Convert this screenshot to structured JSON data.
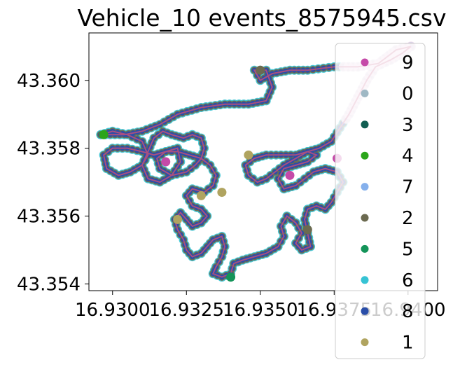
{
  "chart_data": {
    "type": "scatter",
    "title": "Vehicle_10 events_8575945.csv",
    "xlabel": "",
    "ylabel": "",
    "xlim": [
      16.9292,
      16.941
    ],
    "ylim": [
      43.3538,
      43.3614
    ],
    "x_ticks": [
      {
        "value": 16.93,
        "label": "16.9300"
      },
      {
        "value": 16.9325,
        "label": "16.9325"
      },
      {
        "value": 16.935,
        "label": "16.9350"
      },
      {
        "value": 16.9375,
        "label": "16.9375"
      },
      {
        "value": 16.94,
        "label": "16.9400"
      }
    ],
    "y_ticks": [
      {
        "value": 43.354,
        "label": "43.354"
      },
      {
        "value": 43.356,
        "label": "43.356"
      },
      {
        "value": 43.358,
        "label": "43.358"
      },
      {
        "value": 43.36,
        "label": "43.360"
      }
    ],
    "grid": false,
    "legend_position": "right",
    "series": [
      {
        "name": "9",
        "color": "#c54aa8"
      },
      {
        "name": "0",
        "color": "#9fb8c4"
      },
      {
        "name": "3",
        "color": "#115e52"
      },
      {
        "name": "4",
        "color": "#2ba51a"
      },
      {
        "name": "7",
        "color": "#85b0ec"
      },
      {
        "name": "2",
        "color": "#6b6a50"
      },
      {
        "name": "5",
        "color": "#149459"
      },
      {
        "name": "6",
        "color": "#36c3d4"
      },
      {
        "name": "8",
        "color": "#2a4ea8"
      },
      {
        "name": "1",
        "color": "#b0a460"
      }
    ],
    "track_line_color": "#c0507a",
    "route": [
      [
        16.9296,
        43.3584
      ],
      [
        16.93,
        43.3585
      ],
      [
        16.9305,
        43.3584
      ],
      [
        16.931,
        43.3582
      ],
      [
        16.9312,
        43.3578
      ],
      [
        16.931,
        43.3575
      ],
      [
        16.9306,
        43.3573
      ],
      [
        16.9302,
        43.3572
      ],
      [
        16.9298,
        43.3574
      ],
      [
        16.9297,
        43.3578
      ],
      [
        16.93,
        43.358
      ],
      [
        16.9305,
        43.358
      ],
      [
        16.931,
        43.3579
      ],
      [
        16.9314,
        43.3578
      ],
      [
        16.9318,
        43.3579
      ],
      [
        16.9322,
        43.358
      ],
      [
        16.9323,
        43.3576
      ],
      [
        16.932,
        43.3572
      ],
      [
        16.9316,
        43.357
      ],
      [
        16.9312,
        43.3571
      ],
      [
        16.931,
        43.3575
      ],
      [
        16.9312,
        43.3579
      ],
      [
        16.9314,
        43.3583
      ],
      [
        16.9317,
        43.3585
      ],
      [
        16.932,
        43.3584
      ],
      [
        16.9324,
        43.3583
      ],
      [
        16.9327,
        43.3584
      ],
      [
        16.933,
        43.3583
      ],
      [
        16.9331,
        43.358
      ],
      [
        16.933,
        43.3577
      ],
      [
        16.9328,
        43.3575
      ],
      [
        16.9325,
        43.3573
      ],
      [
        16.932,
        43.3572
      ],
      [
        16.9316,
        43.3574
      ],
      [
        16.9315,
        43.3577
      ],
      [
        16.9318,
        43.3579
      ],
      [
        16.9322,
        43.3579
      ],
      [
        16.9326,
        43.3578
      ],
      [
        16.933,
        43.3577
      ],
      [
        16.9333,
        43.3575
      ],
      [
        16.9335,
        43.3572
      ],
      [
        16.9334,
        43.3569
      ],
      [
        16.9331,
        43.3567
      ],
      [
        16.9327,
        43.3568
      ],
      [
        16.9325,
        43.3566
      ],
      [
        16.9327,
        43.3563
      ],
      [
        16.933,
        43.3562
      ],
      [
        16.9332,
        43.356
      ],
      [
        16.933,
        43.3558
      ],
      [
        16.9327,
        43.3557
      ],
      [
        16.9325,
        43.3559
      ],
      [
        16.9323,
        43.3561
      ],
      [
        16.9321,
        43.3559
      ],
      [
        16.9322,
        43.3556
      ],
      [
        16.9324,
        43.3553
      ],
      [
        16.9325,
        43.355
      ],
      [
        16.9327,
        43.3548
      ],
      [
        16.933,
        43.3549
      ],
      [
        16.9332,
        43.3551
      ],
      [
        16.9334,
        43.3553
      ],
      [
        16.9337,
        43.3554
      ],
      [
        16.9338,
        43.3551
      ],
      [
        16.9337,
        43.3548
      ],
      [
        16.9335,
        43.3545
      ],
      [
        16.9334,
        43.3543
      ],
      [
        16.9337,
        43.3542
      ],
      [
        16.934,
        43.3543
      ],
      [
        16.9341,
        43.3546
      ],
      [
        16.9344,
        43.3547
      ],
      [
        16.9348,
        43.3548
      ],
      [
        16.9352,
        43.3549
      ],
      [
        16.9356,
        43.3551
      ],
      [
        16.9358,
        43.3554
      ],
      [
        16.9357,
        43.3557
      ],
      [
        16.9359,
        43.356
      ],
      [
        16.9362,
        43.3558
      ],
      [
        16.9364,
        43.3555
      ],
      [
        16.9362,
        43.3552
      ],
      [
        16.9364,
        43.355
      ],
      [
        16.9367,
        43.3551
      ],
      [
        16.9366,
        43.3555
      ],
      [
        16.9365,
        43.3559
      ],
      [
        16.9366,
        43.3562
      ],
      [
        16.9369,
        43.3563
      ],
      [
        16.9372,
        43.3562
      ],
      [
        16.9374,
        43.3564
      ],
      [
        16.9376,
        43.3567
      ],
      [
        16.9378,
        43.357
      ],
      [
        16.9376,
        43.3573
      ],
      [
        16.9372,
        43.3574
      ],
      [
        16.9368,
        43.3573
      ],
      [
        16.9365,
        43.3571
      ],
      [
        16.9362,
        43.3569
      ],
      [
        16.9358,
        43.3568
      ],
      [
        16.9356,
        43.3571
      ],
      [
        16.9358,
        43.3574
      ],
      [
        16.9362,
        43.3575
      ],
      [
        16.9366,
        43.3576
      ],
      [
        16.9369,
        43.3578
      ],
      [
        16.9366,
        43.3579
      ],
      [
        16.9362,
        43.3578
      ],
      [
        16.9357,
        43.3578
      ],
      [
        16.9352,
        43.3578
      ],
      [
        16.9348,
        43.3577
      ],
      [
        16.9345,
        43.3575
      ],
      [
        16.9346,
        43.3572
      ],
      [
        16.9349,
        43.357
      ],
      [
        16.9352,
        43.3571
      ],
      [
        16.9355,
        43.3573
      ],
      [
        16.9358,
        43.3575
      ],
      [
        16.9362,
        43.3577
      ],
      [
        16.9366,
        43.3579
      ],
      [
        16.937,
        43.358
      ],
      [
        16.9374,
        43.3582
      ],
      [
        16.9377,
        43.3586
      ],
      [
        16.938,
        43.359
      ],
      [
        16.9383,
        43.3595
      ],
      [
        16.9386,
        43.36
      ],
      [
        16.9389,
        43.3604
      ],
      [
        16.9394,
        43.3606
      ],
      [
        16.9398,
        43.3608
      ],
      [
        16.9401,
        43.361
      ],
      [
        16.9396,
        43.3609
      ],
      [
        16.939,
        43.3605
      ],
      [
        16.9383,
        43.3604
      ],
      [
        16.9375,
        43.3604
      ],
      [
        16.9366,
        43.3603
      ],
      [
        16.936,
        43.3603
      ],
      [
        16.9354,
        43.3602
      ],
      [
        16.935,
        43.36
      ],
      [
        16.9348,
        43.3603
      ],
      [
        16.9352,
        43.3603
      ],
      [
        16.9354,
        43.3598
      ],
      [
        16.9352,
        43.3594
      ],
      [
        16.9346,
        43.3593
      ],
      [
        16.9338,
        43.3593
      ],
      [
        16.933,
        43.3592
      ],
      [
        16.9322,
        43.359
      ],
      [
        16.9316,
        43.3587
      ],
      [
        16.931,
        43.3585
      ],
      [
        16.9304,
        43.3584
      ],
      [
        16.9296,
        43.3584
      ]
    ],
    "highlight_points": [
      {
        "x": 16.9376,
        "y": 43.3577,
        "series": "9"
      },
      {
        "x": 16.936,
        "y": 43.3572,
        "series": "9"
      },
      {
        "x": 16.9318,
        "y": 43.3576,
        "series": "9"
      },
      {
        "x": 16.933,
        "y": 43.3566,
        "series": "1"
      },
      {
        "x": 16.9337,
        "y": 43.3567,
        "series": "1"
      },
      {
        "x": 16.9346,
        "y": 43.3578,
        "series": "1"
      },
      {
        "x": 16.9322,
        "y": 43.3559,
        "series": "1"
      },
      {
        "x": 16.934,
        "y": 43.3542,
        "series": "5"
      },
      {
        "x": 16.9297,
        "y": 43.3584,
        "series": "4"
      },
      {
        "x": 16.9366,
        "y": 43.3556,
        "series": "2"
      },
      {
        "x": 16.935,
        "y": 43.3603,
        "series": "2"
      }
    ]
  }
}
